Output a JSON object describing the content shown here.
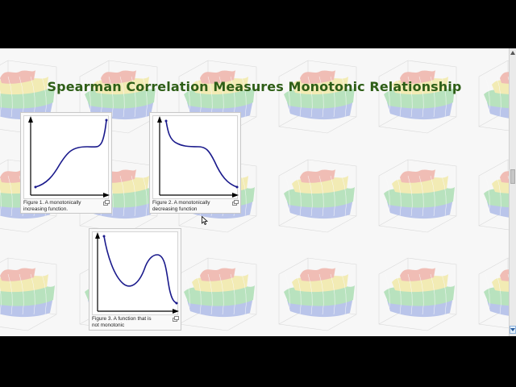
{
  "page": {
    "title": "Spearman Correlation Measures Monotonic Relationship"
  },
  "figures": [
    {
      "caption": "Figure 1. A monotonically increasing function.",
      "trend": "increasing"
    },
    {
      "caption": "Figure 2. A monotonically decreasing function",
      "trend": "decreasing"
    },
    {
      "caption": "Figure 3. A function that is not monotonic",
      "trend": "non-monotonic"
    }
  ],
  "icons": {
    "enlarge": "enlarge-icon",
    "background": "3d-surface-plot-icon",
    "cursor": "mouse-pointer-icon"
  },
  "colors": {
    "title": "#2e5e17",
    "curve": "#1a1a8c",
    "background": "#f7f7f7"
  }
}
